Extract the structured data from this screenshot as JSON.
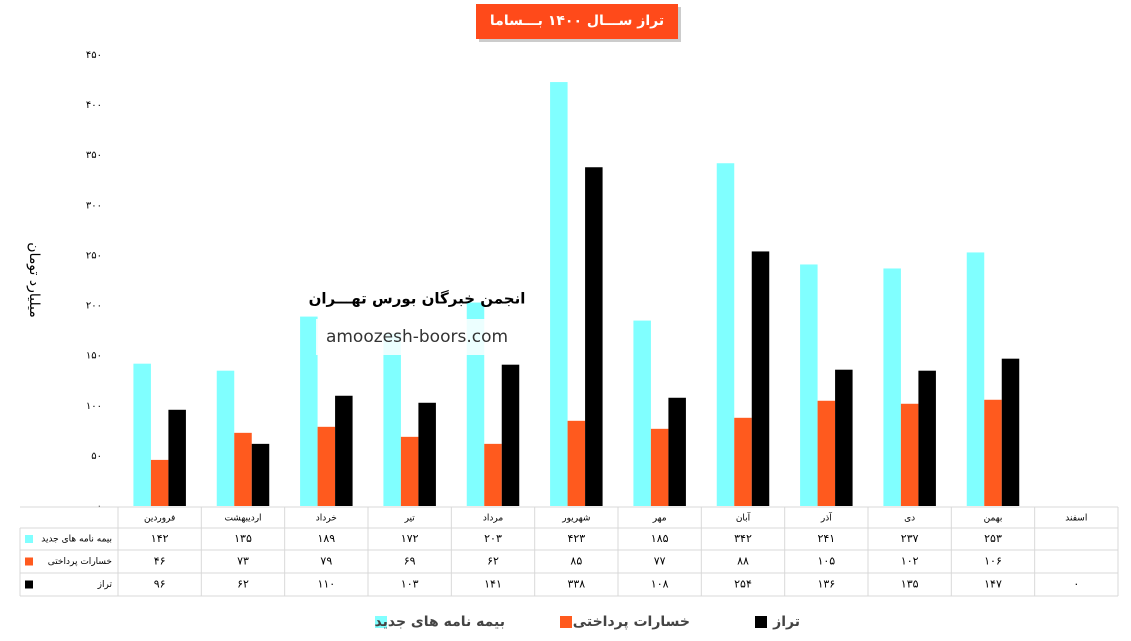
{
  "chart_data": {
    "type": "bar",
    "title": "تراز ســـال ۱۴۰۰ بـــساما",
    "y_label": "میلیارد تومان",
    "annotations": [
      "انجمن خبرگان بورس تهـــران",
      "amoozesh-boors.com"
    ],
    "categories": [
      "فروردین",
      "اردیبهشت",
      "خرداد",
      "تیر",
      "مرداد",
      "شهریور",
      "مهر",
      "آبان",
      "آذر",
      "دی",
      "بهمن",
      "اسفند"
    ],
    "series": [
      {
        "name": "بیمه نامه های جدید",
        "color": "#80ffff",
        "values": [
          142,
          135,
          189,
          172,
          203,
          423,
          185,
          342,
          241,
          237,
          253,
          null
        ],
        "value_labels": [
          "۱۴۲",
          "۱۳۵",
          "۱۸۹",
          "۱۷۲",
          "۲۰۳",
          "۴۲۳",
          "۱۸۵",
          "۳۴۲",
          "۲۴۱",
          "۲۳۷",
          "۲۵۳",
          null
        ]
      },
      {
        "name": "خسارات پرداختی",
        "color": "#ff5a1e",
        "values": [
          46,
          73,
          79,
          69,
          62,
          85,
          77,
          88,
          105,
          102,
          106,
          null
        ],
        "value_labels": [
          "۴۶",
          "۷۳",
          "۷۹",
          "۶۹",
          "۶۲",
          "۸۵",
          "۷۷",
          "۸۸",
          "۱۰۵",
          "۱۰۲",
          "۱۰۶",
          null
        ]
      },
      {
        "name": "تراز",
        "color": "#000000",
        "values": [
          96,
          62,
          110,
          103,
          141,
          338,
          108,
          254,
          136,
          135,
          147,
          0
        ],
        "value_labels": [
          "۹۶",
          "۶۲",
          "۱۱۰",
          "۱۰۳",
          "۱۴۱",
          "۳۳۸",
          "۱۰۸",
          "۲۵۴",
          "۱۳۶",
          "۱۳۵",
          "۱۴۷",
          "۰"
        ]
      }
    ],
    "ylim": [
      0,
      450
    ],
    "yticks": [
      {
        "value": 0,
        "label": "۰"
      },
      {
        "value": 50,
        "label": "۵۰"
      },
      {
        "value": 100,
        "label": "۱۰۰"
      },
      {
        "value": 150,
        "label": "۱۵۰"
      },
      {
        "value": 200,
        "label": "۲۰۰"
      },
      {
        "value": 250,
        "label": "۲۵۰"
      },
      {
        "value": 300,
        "label": "۳۰۰"
      },
      {
        "value": 350,
        "label": "۳۵۰"
      },
      {
        "value": 400,
        "label": "۴۰۰"
      },
      {
        "value": 450,
        "label": "۴۵۰"
      }
    ],
    "grid": false,
    "legend": "bottom"
  }
}
